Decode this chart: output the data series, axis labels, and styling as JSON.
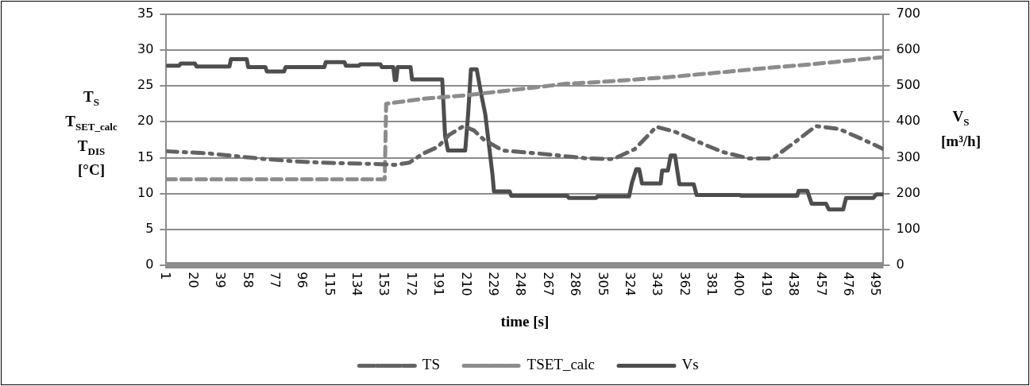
{
  "chart_data": {
    "type": "line",
    "xlabel": "time [s]",
    "ylabel": "T$_{S}$\nT$_{SET_calc}$\nT$_{DIS}$\n[°C]",
    "y2label": "V$_{S}$\n[m³/h]",
    "xlim": [
      1,
      500
    ],
    "xticks": [
      1,
      20,
      39,
      58,
      77,
      96,
      115,
      134,
      153,
      172,
      191,
      210,
      229,
      248,
      267,
      286,
      305,
      324,
      343,
      362,
      381,
      400,
      419,
      438,
      457,
      476,
      495
    ],
    "ylim": [
      0,
      35
    ],
    "yticks": [
      0,
      5,
      10,
      15,
      20,
      25,
      30,
      35
    ],
    "y2lim": [
      0,
      700
    ],
    "y2ticks": [
      0,
      100,
      200,
      300,
      400,
      500,
      600,
      700
    ],
    "grid": "y",
    "legend": "bottom",
    "series": [
      {
        "name": "TS",
        "color": "#636363",
        "line_style": "dashdot",
        "x": [
          1,
          10,
          30,
          50,
          70,
          90,
          110,
          130,
          150,
          160,
          170,
          180,
          190,
          198,
          208,
          215,
          222,
          235,
          259,
          294,
          312,
          327,
          342,
          355,
          377,
          388,
          406,
          423,
          438,
          453,
          469,
          485,
          500
        ],
        "values": [
          15.9,
          15.8,
          15.6,
          15.2,
          14.8,
          14.5,
          14.3,
          14.2,
          14.1,
          14,
          14.3,
          15.6,
          16.5,
          18.2,
          19.4,
          18.8,
          17.5,
          16,
          15.6,
          14.9,
          14.8,
          16.2,
          19.3,
          18.6,
          16.7,
          15.8,
          14.9,
          14.9,
          17.1,
          19.4,
          19,
          17.6,
          16.2
        ]
      },
      {
        "name": "TSET_calc",
        "color": "#8c8c8c",
        "line_style": "dashed",
        "x": [
          1,
          153,
          154,
          180,
          210,
          250,
          280,
          300,
          350,
          388,
          420,
          450,
          500
        ],
        "values": [
          12,
          12,
          22.5,
          23.2,
          23.7,
          24.6,
          25.3,
          25.5,
          26.2,
          26.9,
          27.5,
          28,
          29
        ]
      },
      {
        "name": "Vs",
        "color": "#4d4d4d",
        "line_style": "solid",
        "axis": "y2",
        "x": [
          1,
          10,
          11,
          21,
          22,
          45,
          46,
          57,
          58,
          70,
          71,
          83,
          84,
          111,
          112,
          125,
          126,
          135,
          136,
          150,
          151,
          159,
          160,
          161,
          162,
          171,
          172,
          193,
          195,
          197,
          209,
          211,
          213,
          217,
          220,
          223,
          228,
          229,
          240,
          241,
          280,
          281,
          300,
          301,
          323,
          325,
          328,
          330,
          332,
          345,
          346,
          350,
          352,
          355,
          358,
          368,
          370,
          400,
          401,
          440,
          441,
          447,
          450,
          460,
          462,
          472,
          474,
          493,
          495,
          500
        ],
        "values": [
          556,
          556,
          562,
          562,
          554,
          554,
          574,
          574,
          552,
          552,
          540,
          540,
          552,
          552,
          566,
          566,
          556,
          556,
          560,
          560,
          552,
          552,
          516,
          516,
          552,
          552,
          518,
          518,
          360,
          320,
          320,
          420,
          546,
          546,
          480,
          420,
          252,
          206,
          206,
          194,
          194,
          188,
          188,
          192,
          192,
          230,
          268,
          268,
          228,
          228,
          264,
          264,
          306,
          306,
          226,
          226,
          196,
          196,
          194,
          194,
          208,
          208,
          172,
          172,
          156,
          156,
          188,
          188,
          198,
          198
        ]
      }
    ]
  }
}
